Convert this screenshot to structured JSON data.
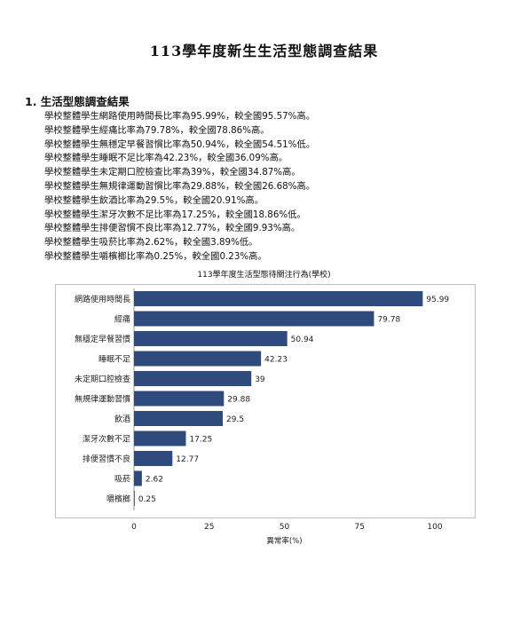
{
  "document": {
    "title": "113學年度新生生活型態調查結果",
    "section_heading": "1. 生活型態調查結果",
    "findings": [
      "學校整體學生網路使用時間長比率為95.99%，較全國95.57%高。",
      "學校整體學生經痛比率為79.78%，較全國78.86%高。",
      "學校整體學生無穩定早餐習慣比率為50.94%，較全國54.51%低。",
      "學校整體學生睡眠不足比率為42.23%，較全國36.09%高。",
      "學校整體學生未定期口腔檢查比率為39%，較全國34.87%高。",
      "學校整體學生無規律運動習慣比率為29.88%，較全國26.68%高。",
      "學校整體學生飲酒比率為29.5%，較全國20.91%高。",
      "學校整體學生潔牙次數不足比率為17.25%，較全國18.86%低。",
      "學校整體學生排便習慣不良比率為12.77%，較全國9.93%高。",
      "學校整體學生吸菸比率為2.62%，較全國3.89%低。",
      "學校整體學生嚼檳榔比率為0.25%，較全國0.23%高。"
    ]
  },
  "chart_data": {
    "type": "bar",
    "orientation": "horizontal",
    "title": "113學年度生活型態待關注行為(學校)",
    "xlabel": "異常率(%)",
    "ylabel": "",
    "xlim": [
      0,
      100
    ],
    "xticks": [
      0,
      25,
      50,
      75,
      100
    ],
    "categories": [
      "網路使用時間長",
      "經痛",
      "無穩定早餐習慣",
      "睡眠不足",
      "未定期口腔檢查",
      "無規律運動習慣",
      "飲酒",
      "潔牙次數不足",
      "排便習慣不良",
      "吸菸",
      "嚼檳榔"
    ],
    "values": [
      95.99,
      79.78,
      50.94,
      42.23,
      39,
      29.88,
      29.5,
      17.25,
      12.77,
      2.62,
      0.25
    ],
    "value_labels": [
      "95.99",
      "79.78",
      "50.94",
      "42.23",
      "39",
      "29.88",
      "29.5",
      "17.25",
      "12.77",
      "2.62",
      "0.25"
    ],
    "bar_color": "#2f4a7d",
    "grid": false,
    "legend": "none"
  }
}
